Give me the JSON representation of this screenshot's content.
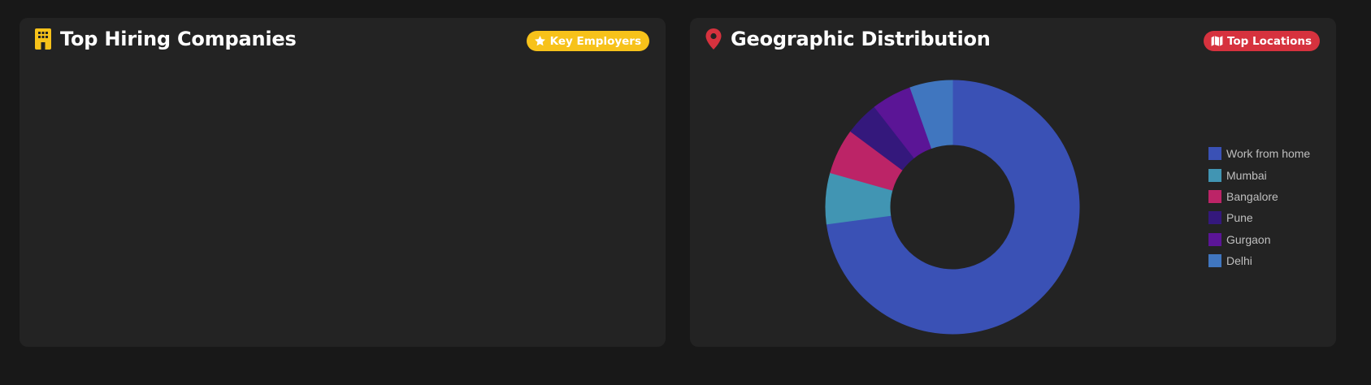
{
  "left_card": {
    "title": "Top Hiring Companies",
    "icon": "building-icon",
    "badge_label": "Key Employers",
    "badge_icon": "star-icon",
    "accent_color": "#f7c21a"
  },
  "right_card": {
    "title": "Geographic Distribution",
    "icon": "map-pin-icon",
    "badge_label": "Top Locations",
    "badge_icon": "map-icon",
    "accent_color": "#d6323e"
  },
  "chart_data": {
    "type": "pie",
    "donut": true,
    "legend_position": "right",
    "categories": [
      "Work from home",
      "Mumbai",
      "Bangalore",
      "Pune",
      "Gurgaon",
      "Delhi"
    ],
    "values": [
      72.8,
      6.5,
      5.8,
      4.3,
      5.1,
      5.4
    ],
    "colors": [
      "#3a51b5",
      "#4195b3",
      "#bc2467",
      "#34187c",
      "#5b1596",
      "#4076bf"
    ]
  }
}
